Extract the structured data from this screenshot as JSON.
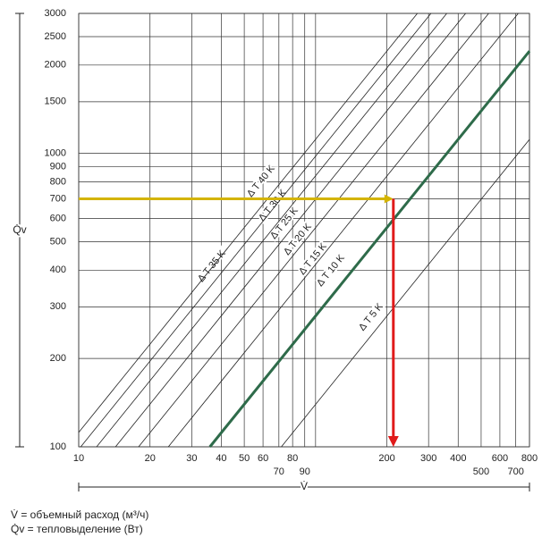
{
  "chart_data": {
    "type": "line",
    "x_log": true,
    "y_log": true,
    "xlim": [
      10,
      800
    ],
    "ylim": [
      100,
      3000
    ],
    "xticks": [
      10,
      20,
      30,
      40,
      50,
      60,
      70,
      80,
      90,
      {
        "value": 100,
        "label": null
      },
      200,
      300,
      400,
      500,
      600,
      700,
      800
    ],
    "yticks": [
      100,
      200,
      300,
      400,
      500,
      600,
      700,
      800,
      900,
      1000,
      1500,
      2000,
      2500,
      3000
    ],
    "xlabel": "V̇",
    "ylabel": "Q̇v",
    "series": [
      {
        "name": "Δ T 5 K",
        "color": "#222222",
        "x": [
          71.7,
          800
        ],
        "values": [
          100,
          1116
        ]
      },
      {
        "name": "Δ T 10 K",
        "color": "#2e6b4a",
        "x": [
          35.8,
          800
        ],
        "values": [
          100,
          2232
        ]
      },
      {
        "name": "Δ T 15 K",
        "color": "#222222",
        "x": [
          23.9,
          717
        ],
        "values": [
          100,
          3000
        ]
      },
      {
        "name": "Δ T 20 K",
        "color": "#222222",
        "x": [
          17.9,
          538
        ],
        "values": [
          100,
          3000
        ]
      },
      {
        "name": "Δ T 25 K",
        "color": "#222222",
        "x": [
          14.3,
          430
        ],
        "values": [
          100,
          3000
        ]
      },
      {
        "name": "Δ T 30 K",
        "color": "#222222",
        "x": [
          11.9,
          358
        ],
        "values": [
          100,
          3000
        ]
      },
      {
        "name": "Δ T 35 K",
        "color": "#222222",
        "x": [
          10.2,
          307
        ],
        "values": [
          100,
          3000
        ]
      },
      {
        "name": "Δ T 40 K",
        "color": "#222222",
        "x": [
          10,
          269
        ],
        "values": [
          112,
          3000
        ]
      }
    ],
    "arrow": {
      "x": 213,
      "value": 700,
      "h_color": "#d4b400",
      "v_color": "#e01b1b"
    },
    "legend": [
      "V̇  = объемный расход (м³/ч)",
      "Q̇v = тепловыделение (Вт)"
    ]
  }
}
